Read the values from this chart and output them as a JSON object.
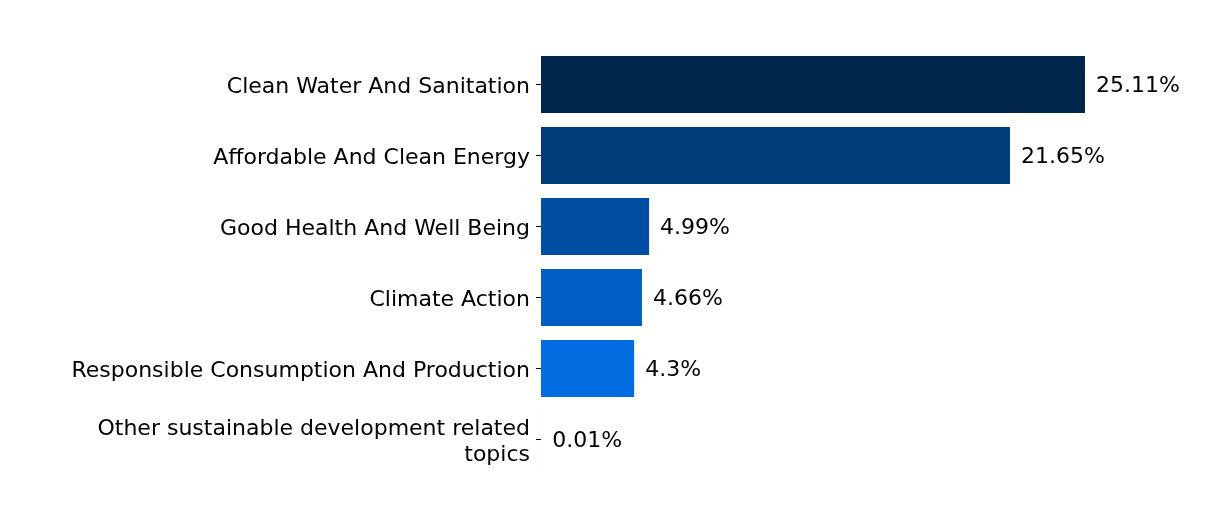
{
  "chart_data": {
    "type": "bar",
    "orientation": "horizontal",
    "categories": [
      "Clean Water And Sanitation",
      "Affordable And Clean Energy",
      "Good Health And Well Being",
      "Climate Action",
      "Responsible Consumption And Production",
      "Other sustainable development related topics"
    ],
    "values": [
      25.11,
      21.65,
      4.99,
      4.66,
      4.3,
      0.01
    ],
    "colors": [
      "#00264d",
      "#003b7a",
      "#004ea3",
      "#005ec4",
      "#006ce0",
      "#d9e8fb"
    ],
    "value_labels": [
      "25.11%",
      "21.65%",
      "4.99%",
      "4.66%",
      "4.3%",
      "0.01%"
    ]
  }
}
